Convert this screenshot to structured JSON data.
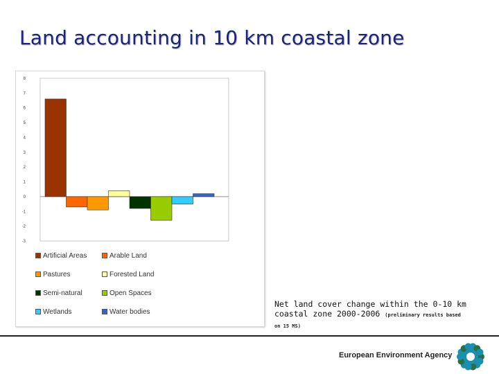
{
  "slide": {
    "title": "Land accounting in 10 km coastal zone"
  },
  "caption": {
    "main": "Net land cover change within the 0-10 km coastal zone 2000-2006",
    "small_inline": "(preliminary results based",
    "small_tail": "on 15 MS)"
  },
  "footer": {
    "agency_name": "European Environment Agency"
  },
  "logo": {
    "name": "eea-logo-icon",
    "color": "#1a8fb0"
  },
  "chart_data": {
    "type": "bar",
    "categories": [
      "Artificial Areas",
      "Arable Land",
      "Pastures",
      "Forested Land",
      "Semi-natural",
      "Open Spaces",
      "Wetlands",
      "Water bodies"
    ],
    "values": [
      6.6,
      -0.7,
      -0.9,
      0.4,
      -0.8,
      -1.6,
      -0.5,
      0.2
    ],
    "colors": [
      "#993300",
      "#ff6600",
      "#ff9900",
      "#ffff99",
      "#003300",
      "#99cc00",
      "#33ccff",
      "#3366cc"
    ],
    "ylim": [
      -3,
      8
    ],
    "yticks": [
      8,
      7,
      6,
      5,
      4,
      3,
      2,
      1,
      0,
      -1,
      -2,
      -3
    ],
    "grid": false,
    "legend": {
      "placement": "bottom",
      "entries": [
        "Artificial Areas",
        "Arable Land",
        "Pastures",
        "Forested Land",
        "Semi-natural",
        "Open Spaces",
        "Wetlands",
        "Water bodies"
      ]
    }
  }
}
